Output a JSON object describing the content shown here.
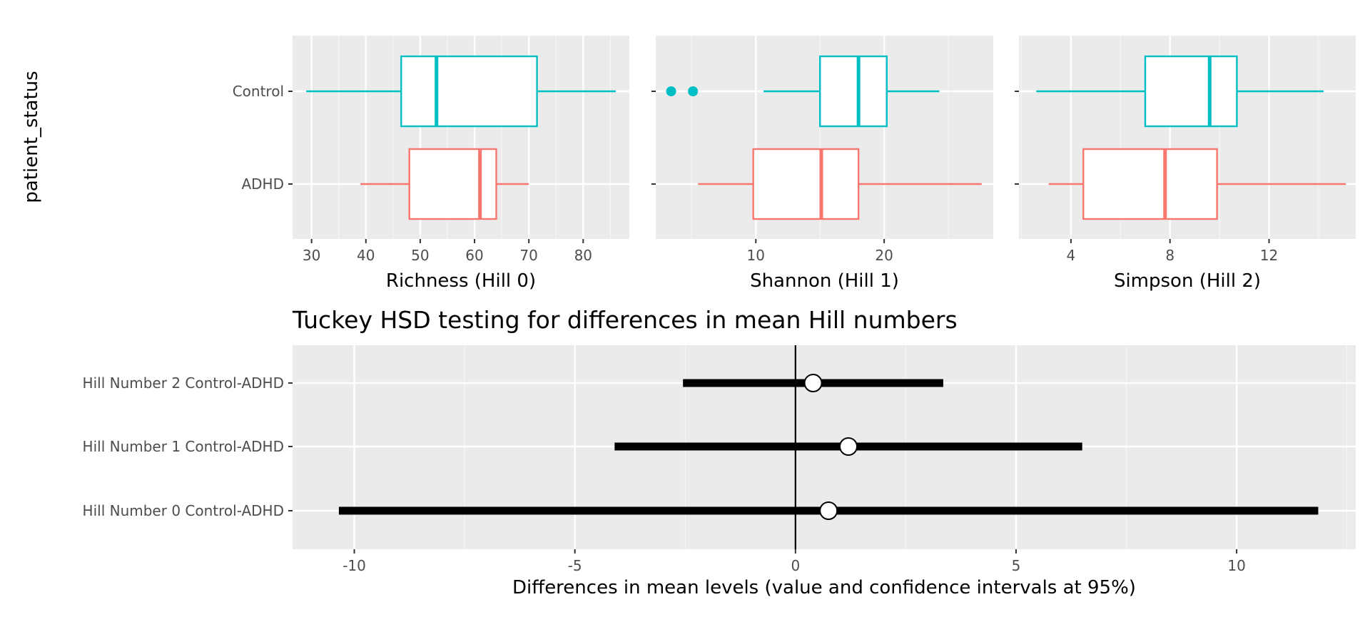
{
  "chart_data": [
    {
      "type": "boxplot",
      "panel": "Richness (Hill 0)",
      "xlabel": "Richness (Hill 0)",
      "ylabel": "patient_status",
      "categories": [
        "Control",
        "ADHD"
      ],
      "xlim": [
        26.5,
        88.5
      ],
      "xticks": [
        30,
        40,
        50,
        60,
        70,
        80
      ],
      "xtick_labels": [
        "30",
        "40",
        "50",
        "60",
        "70",
        "80"
      ],
      "boxes": [
        {
          "group": "Control",
          "color": "#00BFC4",
          "whisker_low": 29,
          "q1": 46.5,
          "median": 53,
          "q3": 71.5,
          "whisker_high": 86,
          "outliers": []
        },
        {
          "group": "ADHD",
          "color": "#F8766D",
          "whisker_low": 39,
          "q1": 48,
          "median": 61,
          "q3": 64,
          "whisker_high": 70,
          "outliers": []
        }
      ]
    },
    {
      "type": "boxplot",
      "panel": "Shannon (Hill 1)",
      "xlabel": "Shannon (Hill 1)",
      "categories": [
        "Control",
        "ADHD"
      ],
      "xlim": [
        2.2,
        28.5
      ],
      "xticks": [
        10,
        20
      ],
      "xtick_labels": [
        "10",
        "20"
      ],
      "boxes": [
        {
          "group": "Control",
          "color": "#00BFC4",
          "whisker_low": 10.6,
          "q1": 15,
          "median": 18,
          "q3": 20.2,
          "whisker_high": 24.3,
          "outliers": [
            3.4,
            5.1
          ]
        },
        {
          "group": "ADHD",
          "color": "#F8766D",
          "whisker_low": 5.5,
          "q1": 9.8,
          "median": 15.1,
          "q3": 18,
          "whisker_high": 27.6,
          "outliers": []
        }
      ]
    },
    {
      "type": "boxplot",
      "panel": "Simpson (Hill 2)",
      "xlabel": "Simpson (Hill 2)",
      "categories": [
        "Control",
        "ADHD"
      ],
      "xlim": [
        1.9,
        15.5
      ],
      "xticks": [
        4,
        8,
        12
      ],
      "xtick_labels": [
        "4",
        "8",
        "12"
      ],
      "boxes": [
        {
          "group": "Control",
          "color": "#00BFC4",
          "whisker_low": 2.6,
          "q1": 7,
          "median": 9.6,
          "q3": 10.7,
          "whisker_high": 14.2,
          "outliers": []
        },
        {
          "group": "ADHD",
          "color": "#F8766D",
          "whisker_low": 3.1,
          "q1": 4.5,
          "median": 7.8,
          "q3": 9.9,
          "whisker_high": 15.1,
          "outliers": []
        }
      ]
    },
    {
      "type": "errorbar",
      "title": "Tuckey HSD testing for differences in mean Hill numbers",
      "xlabel": "Differences in mean levels (value and confidence intervals at 95%)",
      "categories": [
        "Hill Number 2 Control-ADHD",
        "Hill Number 1 Control-ADHD",
        "Hill Number 0 Control-ADHD"
      ],
      "xlim": [
        -11.4,
        12.7
      ],
      "xticks": [
        -10,
        -5,
        0,
        5,
        10
      ],
      "xtick_labels": [
        "-10",
        "-5",
        "0",
        "5",
        "10"
      ],
      "reference_line": 0,
      "estimates": [
        {
          "label": "Hill Number 2 Control-ADHD",
          "diff": 0.4,
          "lwr": -2.55,
          "upr": 3.35
        },
        {
          "label": "Hill Number 1 Control-ADHD",
          "diff": 1.2,
          "lwr": -4.1,
          "upr": 6.5
        },
        {
          "label": "Hill Number 0 Control-ADHD",
          "diff": 0.75,
          "lwr": -10.35,
          "upr": 11.85
        }
      ]
    }
  ]
}
